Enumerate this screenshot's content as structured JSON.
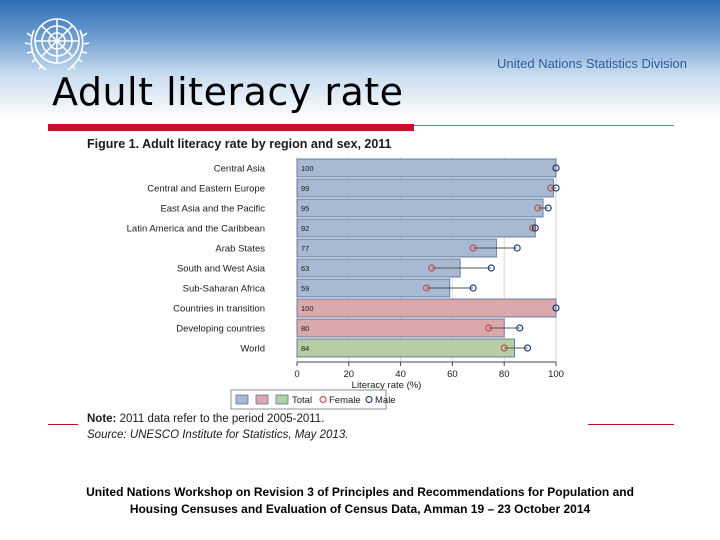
{
  "header": {
    "division": "United Nations Statistics Division",
    "title": "Adult literacy rate"
  },
  "figure": {
    "title": "Figure 1. Adult literacy rate by region and sex, 2011",
    "note_label": "Note:",
    "note_text": " 2011 data refer to the period 2005-2011.",
    "source": "Source: UNESCO Institute for Statistics, May 2013."
  },
  "footer": {
    "line1": "United Nations Workshop on Revision 3 of Principles and Recommendations for Population and",
    "line2": "Housing Censuses and Evaluation of Census Data, Amman 19 – 23 October 2014"
  },
  "colors": {
    "region_bar": "#a8b9d2",
    "transition_bar": "#dba8ac",
    "world_bar": "#b5cfa3",
    "female": "#c0504d",
    "male": "#1f3f78",
    "bar_edge": "#4a6a99"
  },
  "chart_data": {
    "type": "bar",
    "orientation": "horizontal",
    "title": "Figure 1. Adult literacy rate by region and sex, 2011",
    "xlabel": "Literacy rate (%)",
    "xlim": [
      0,
      100
    ],
    "xticks": [
      0,
      20,
      40,
      60,
      80,
      100
    ],
    "categories": [
      "Central Asia",
      "Central and Eastern Europe",
      "East Asia and the Pacific",
      "Latin America and the Caribbean",
      "Arab States",
      "South and West Asia",
      "Sub-Saharan Africa",
      "Countries in transition",
      "Developing countries",
      "World"
    ],
    "groups": [
      "region",
      "region",
      "region",
      "region",
      "region",
      "region",
      "region",
      "transition",
      "developing",
      "world"
    ],
    "series": [
      {
        "name": "Total",
        "values": [
          100,
          99,
          95,
          92,
          77,
          63,
          59,
          100,
          80,
          84
        ]
      },
      {
        "name": "Female",
        "values": [
          100,
          98,
          93,
          91,
          68,
          52,
          50,
          100,
          74,
          80
        ]
      },
      {
        "name": "Male",
        "values": [
          100,
          100,
          97,
          92,
          85,
          75,
          68,
          100,
          86,
          89
        ]
      }
    ],
    "legend": {
      "position": "bottom",
      "entries": [
        "Total",
        "Female",
        "Male"
      ]
    }
  }
}
